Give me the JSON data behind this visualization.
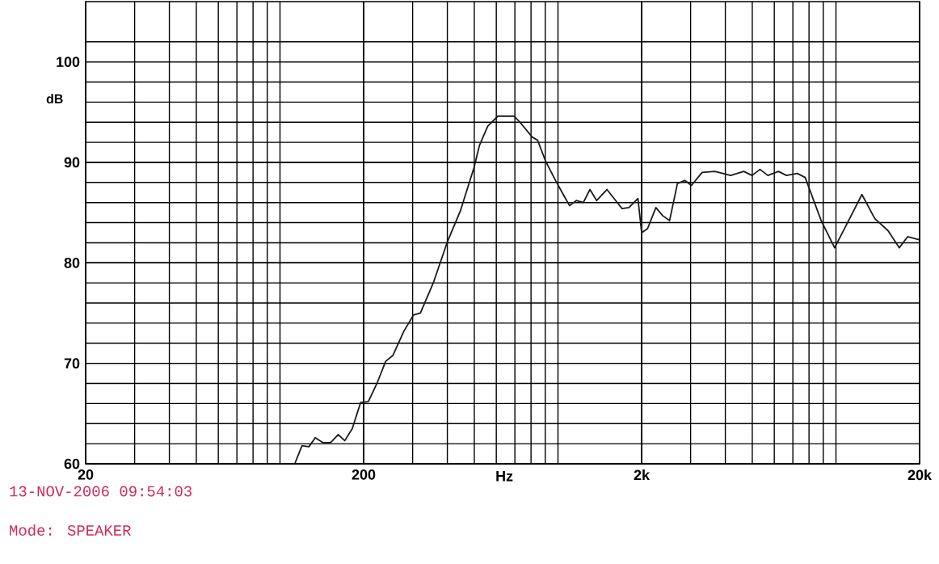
{
  "chart_data": {
    "type": "line",
    "xlabel": "Hz",
    "ylabel": "dB",
    "log": "x",
    "grid": true,
    "marker": "none",
    "line_style": "solid",
    "xlim": [
      20,
      20000
    ],
    "xticks": [
      20,
      200,
      {
        "value": 2000,
        "label": "2k"
      },
      {
        "value": 20000,
        "label": "20k"
      }
    ],
    "ylim": [
      60,
      106
    ],
    "yticks": [
      60,
      70,
      80,
      90,
      100
    ],
    "series": [
      {
        "color": "#1a1a1a",
        "x": [
          113,
          120,
          127,
          134,
          143,
          152,
          162,
          171,
          182,
          195,
          208,
          224,
          240,
          255,
          279,
          302,
          320,
          356,
          399,
          446,
          499,
          522,
          559,
          608,
          696,
          740,
          809,
          845,
          903,
          980,
          1045,
          1100,
          1164,
          1234,
          1303,
          1378,
          1500,
          1700,
          1800,
          1940,
          2000,
          2100,
          2250,
          2380,
          2520,
          2690,
          2860,
          3020,
          3300,
          3670,
          4180,
          4660,
          4990,
          5330,
          5690,
          6210,
          6640,
          7260,
          7750,
          8850,
          9890,
          11100,
          12400,
          13800,
          15400,
          16900,
          18100,
          19900
        ],
        "values": [
          60,
          61.8,
          61.7,
          62.6,
          62.1,
          62.1,
          62.9,
          62.3,
          63.5,
          66.1,
          66.2,
          68.1,
          70.2,
          70.8,
          73.2,
          74.8,
          75,
          78,
          82,
          85.2,
          89.5,
          91.7,
          93.6,
          94.6,
          94.6,
          93.8,
          92.5,
          92.2,
          90.1,
          88.2,
          86.8,
          85.7,
          86.2,
          86,
          87.3,
          86.2,
          87.3,
          85.4,
          85.5,
          86.4,
          83,
          83.4,
          85.5,
          84.7,
          84.2,
          87.9,
          88.2,
          87.7,
          89,
          89.1,
          88.7,
          89.1,
          88.7,
          89.3,
          88.7,
          89.1,
          88.7,
          88.9,
          88.5,
          84.2,
          81.5,
          84.2,
          86.8,
          84.4,
          83.2,
          81.5,
          82.6,
          82.3
        ]
      }
    ],
    "annotations": [
      "13-NOV-2006 09:54:03",
      "Mode: SPEAKER"
    ]
  }
}
